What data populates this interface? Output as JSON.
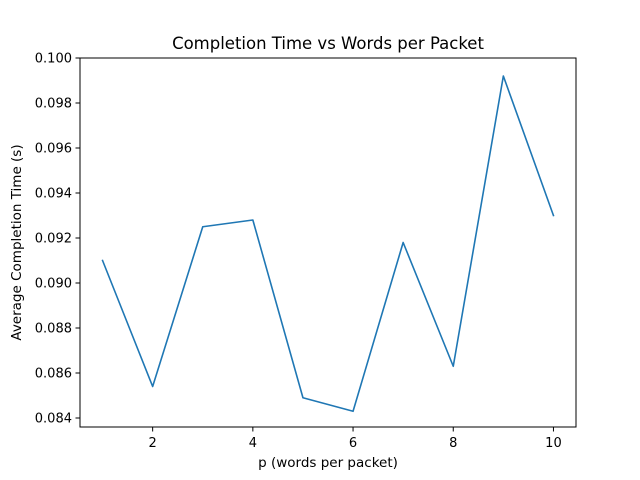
{
  "chart_data": {
    "type": "line",
    "title": "Completion Time vs Words per Packet",
    "xlabel": "p (words per packet)",
    "ylabel": "Average Completion Time (s)",
    "x": [
      1,
      2,
      3,
      4,
      5,
      6,
      7,
      8,
      9,
      10
    ],
    "series": [
      {
        "values": [
          0.091,
          0.0854,
          0.0925,
          0.0928,
          0.0849,
          0.0843,
          0.0918,
          0.0863,
          0.0992,
          0.093
        ],
        "color": "#1f77b4"
      }
    ],
    "xlim": [
      0.55,
      10.45
    ],
    "ylim": [
      0.0836,
      0.1
    ],
    "xticks": [
      2,
      4,
      6,
      8,
      10
    ],
    "xtick_labels": [
      "2",
      "4",
      "6",
      "8",
      "10"
    ],
    "yticks": [
      0.084,
      0.086,
      0.088,
      0.09,
      0.092,
      0.094,
      0.096,
      0.098,
      0.1
    ],
    "ytick_labels": [
      "0.084",
      "0.086",
      "0.088",
      "0.090",
      "0.092",
      "0.094",
      "0.096",
      "0.098",
      "0.100"
    ],
    "grid": false,
    "legend": false
  }
}
